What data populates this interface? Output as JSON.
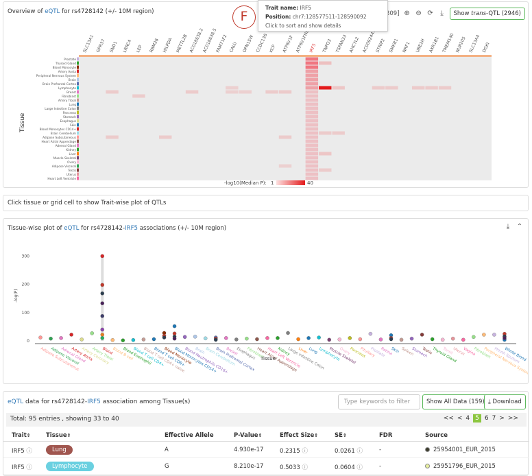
{
  "heatmap_panel": {
    "title_pre": "Overview of ",
    "title_link": "eQTL",
    "title_post": " for rs4728142 (+/- 10M region)",
    "range": "1 in [1-309]",
    "trans_btn_pre": "Show ",
    "trans_btn_em": "trans",
    "trans_btn_post": "-QTL (2946)",
    "genes": [
      "SLC13A1",
      "GPR37",
      "SND1",
      "LRRC4",
      "LEP",
      "RBM28",
      "HILPDA",
      "METTL2B",
      "AC018638.2",
      "AC018638.5",
      "FAM71F2",
      "CALU",
      "OPN1SW",
      "CCDC136",
      "KCP",
      "ATP6V1F",
      "ATP6V1FNB",
      "IRF5",
      "TNPO3",
      "TSPAN33",
      "AHCYL2",
      "AC009244.1",
      "STRIP2",
      "SMKR1",
      "NRF1",
      "UBE2H",
      "AKR1B1",
      "TMEM140",
      "NUP205",
      "SLC13A4",
      "DGKI"
    ],
    "tissues": [
      "Prostate",
      "Thyroid Gland",
      "Blood Monocyte",
      "Artery Aorta",
      "Peripheral Nervous System",
      "Brain",
      "Brain Prefrontal Cortex",
      "Lymphocyte",
      "Breast",
      "Fibroblast",
      "Artery Tibial",
      "Lung",
      "Large Intestine Colon",
      "Pancreas",
      "Stomach",
      "Esophagus",
      "Skin",
      "Blood Monocytes CD14+",
      "Brain Cerebellum",
      "Adipose Subcutaneous",
      "Heart Atrial Appendage",
      "Adrenal Gland",
      "Kidney",
      "Liver",
      "Muscle Skeletal",
      "Ovary",
      "Adipose Visceral",
      "Testis",
      "Uterus",
      "Heart Left Ventricle"
    ],
    "tissue_colors": [
      "#c7b3df",
      "#2ca02c",
      "#8c2d04",
      "#d62728",
      "#ffbb78",
      "#aec7e8",
      "#5a6fb0",
      "#17becf",
      "#e377c2",
      "#98df8a",
      "#c49c94",
      "#1f77b4",
      "#7f7f7f",
      "#bcbd22",
      "#9467bd",
      "#dbdb8d",
      "#1f77b4",
      "#d62728",
      "#9edae5",
      "#ff9896",
      "#8c564b",
      "#e377c2",
      "#2ca02c",
      "#ff7f0e",
      "#7b4173",
      "#f7b6d2",
      "#31a354",
      "#843c39",
      "#e7969c",
      "#f768a1"
    ],
    "legend_label": "-log10(Median P):",
    "legend_min": "1",
    "legend_max": "40",
    "axis_label": "Tissue",
    "tooltip": {
      "k1": "Trait name:",
      "v1": "IRF5",
      "k2": "Position:",
      "v2": "chr7:128577511-128590092",
      "note": "Click to sort and show details"
    },
    "marker": "F"
  },
  "hint": "Click tissue or grid cell to show Trait-wise plot of QTLs",
  "scatter_panel": {
    "title_pre": "Tissue-wise plot of ",
    "title_link": "eQTL",
    "title_mid": " for rs4728142-",
    "title_gene": "IRF5",
    "title_post": " associations (+/- 10M region)",
    "ylabel": "-log(P)",
    "xlabel": "Tissue",
    "yticks": [
      "0",
      "100",
      "200",
      "300"
    ]
  },
  "chart_data": {
    "type": "scatter",
    "ylabel": "-log(P)",
    "xlabel": "Tissue",
    "ylim": [
      0,
      330
    ],
    "categories": [
      "Adipose Subcutaneous",
      "Adipose Visceral",
      "Adrenal Gland",
      "Artery Aorta",
      "Artery Coronary",
      "Artery Tibial",
      "Blood",
      "Blood B cell",
      "Blood Eosinophil",
      "Blood T cell CD4+",
      "Blood T cell CD4+ naive",
      "Blood T cell CD8+",
      "Blood Monocyte",
      "Blood Monocytes CD14+",
      "Blood Neutrophils CD16+",
      "Brain",
      "Brain Cerebellum",
      "Brain Prefrontal Cortex",
      "Breast",
      "Esophagus",
      "Fibroblast",
      "Heart Atrial Appendage",
      "Heart Left Ventricle",
      "Kidney",
      "Large Intestine Colon",
      "Liver",
      "Lung",
      "Lymphocyte",
      "Muscle Skeletal",
      "Ovary",
      "Pancreas",
      "Pituitary",
      "Prostate",
      "Retina",
      "Skin",
      "Spleen",
      "Stomach",
      "Testis",
      "Thyroid Gland",
      "Tonsil",
      "Uterus",
      "Vagina",
      "Fibroblast",
      "Peripheral Nervous System",
      "Mouth Sputum",
      "Whole Blood"
    ],
    "values": [
      12,
      8,
      10,
      22,
      5,
      27,
      300,
      3,
      2,
      3,
      5,
      6,
      28,
      52,
      14,
      15,
      9,
      12,
      10,
      5,
      8,
      6,
      10,
      10,
      28,
      6,
      10,
      12,
      4,
      5,
      10,
      6,
      25,
      5,
      20,
      4,
      8,
      22,
      6,
      4,
      8,
      4,
      14,
      22,
      22,
      4
    ],
    "extra_points": [
      {
        "x": "Blood",
        "y": [
          198,
          168,
          133,
          88,
          40,
          22,
          10
        ]
      },
      {
        "x": "Blood Monocyte",
        "y": [
          18,
          12
        ]
      },
      {
        "x": "Blood Monocytes CD14+",
        "y": [
          26,
          15,
          8
        ]
      },
      {
        "x": "Brain Prefrontal Cortex",
        "y": [
          8,
          4
        ]
      },
      {
        "x": "Skin",
        "y": [
          10,
          6
        ]
      },
      {
        "x": "Whole Blood",
        "y": [
          25,
          16,
          10
        ]
      }
    ],
    "colors": [
      "#ff9896",
      "#31a354",
      "#e377c2",
      "#d62728",
      "#dbdb8d",
      "#98df8a",
      "#d62728",
      "#ffbb78",
      "#2ca02c",
      "#17becf",
      "#c49c94",
      "#1f77b4",
      "#8c2d04",
      "#1f77b4",
      "#9467bd",
      "#aec7e8",
      "#9edae5",
      "#5a6fb0",
      "#e377c2",
      "#7f7f7f",
      "#98df8a",
      "#8c564b",
      "#f768a1",
      "#2ca02c",
      "#7f7f7f",
      "#ff7f0e",
      "#1f77b4",
      "#17becf",
      "#7b4173",
      "#f7b6d2",
      "#bcbd22",
      "#ff9896",
      "#c7b3df",
      "#e377c2",
      "#1f77b4",
      "#c49c94",
      "#9467bd",
      "#843c39",
      "#2ca02c",
      "#f7b6d2",
      "#e7969c",
      "#f768a1",
      "#98df8a",
      "#ffbb78",
      "#c7b3df",
      "#1f77b4"
    ]
  },
  "table": {
    "title_link": "eQTL",
    "title_mid": " data for rs4728142-",
    "title_gene": "IRF5",
    "title_post": " association among Tissue(s)",
    "search_placeholder": "Type keywords to filter",
    "show_all": "Show All Data (159)",
    "download": "Download",
    "total": "Total: 95 entries , showing 33 to 40",
    "pages": [
      "<<",
      "<",
      "4",
      "5",
      "6",
      "7",
      ">",
      ">>"
    ],
    "headers": [
      "Trait",
      "Tissue",
      "Effective Allele",
      "P-Value",
      "Effect Size",
      "SE",
      "FDR",
      "Source"
    ],
    "rows": [
      {
        "trait": "IRF5",
        "tissue": "Lung",
        "tissue_color": "#a0564f",
        "allele": "A",
        "pval": "4.930e-17",
        "effect": "0.2315",
        "se": "0.0261",
        "fdr": "-",
        "source": "25954001_EUR_2015",
        "src_color": "#3d3d2d"
      },
      {
        "trait": "IRF5",
        "tissue": "Lymphocyte",
        "tissue_color": "#6ad0e0",
        "allele": "G",
        "pval": "8.210e-17",
        "effect": "0.5033",
        "se": "0.0604",
        "fdr": "-",
        "source": "25951796_EUR_2015",
        "src_color": "#e8f0a0"
      }
    ]
  }
}
